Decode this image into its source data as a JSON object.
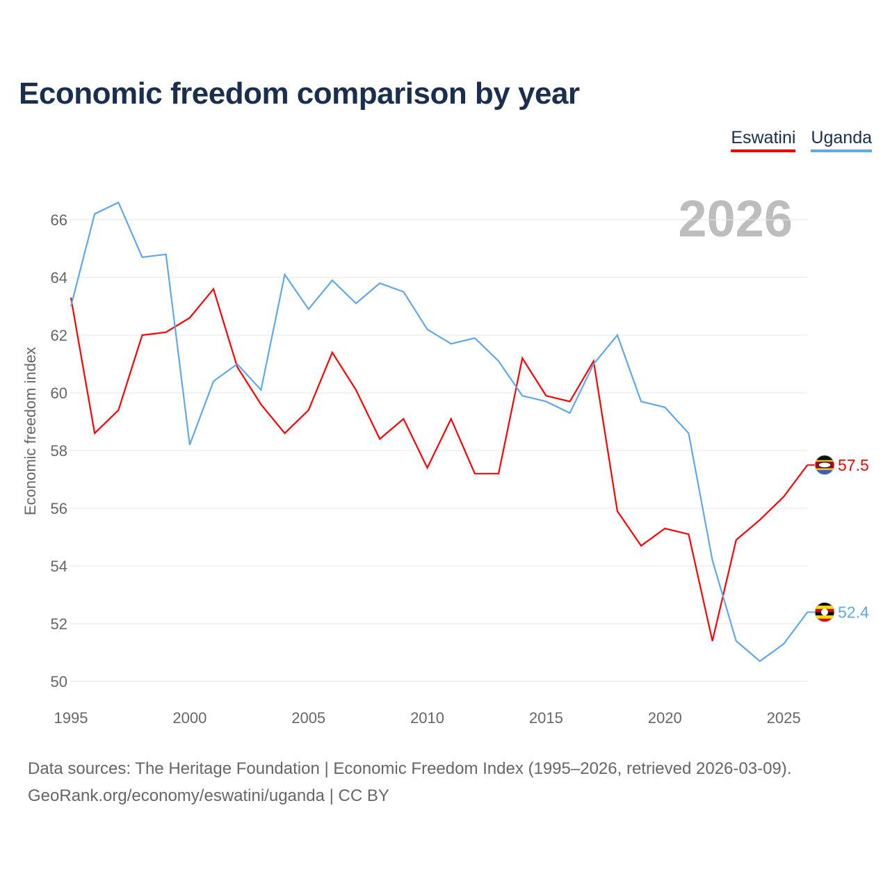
{
  "chart_data": {
    "type": "line",
    "title": "Economic freedom comparison by year",
    "xlabel": "",
    "ylabel": "Economic freedom index",
    "watermark_year": "2026",
    "xlim": [
      1995,
      2026
    ],
    "ylim": [
      50,
      67
    ],
    "x_ticks": [
      1995,
      2000,
      2005,
      2010,
      2015,
      2020,
      2025
    ],
    "y_ticks": [
      50,
      52,
      54,
      56,
      58,
      60,
      62,
      64,
      66
    ],
    "grid": true,
    "legend_position": "top-right",
    "x": [
      1995,
      1996,
      1997,
      1998,
      1999,
      2000,
      2001,
      2002,
      2003,
      2004,
      2005,
      2006,
      2007,
      2008,
      2009,
      2010,
      2011,
      2012,
      2013,
      2014,
      2015,
      2016,
      2017,
      2018,
      2019,
      2020,
      2021,
      2022,
      2023,
      2024,
      2025,
      2026
    ],
    "series": [
      {
        "name": "Eswatini",
        "color": "#ff0000",
        "end_label": "57.5",
        "values": [
          63.3,
          58.6,
          59.4,
          62.0,
          62.1,
          62.6,
          63.6,
          60.9,
          59.6,
          58.6,
          59.4,
          61.4,
          60.1,
          58.4,
          59.1,
          57.4,
          59.1,
          57.2,
          57.2,
          61.2,
          59.9,
          59.7,
          61.1,
          55.9,
          54.7,
          55.3,
          55.1,
          51.4,
          54.9,
          55.6,
          56.4,
          57.5
        ]
      },
      {
        "name": "Uganda",
        "color": "#5fa8ea",
        "end_label": "52.4",
        "values": [
          63.0,
          66.2,
          66.6,
          64.7,
          64.8,
          58.2,
          60.4,
          61.0,
          60.1,
          64.1,
          62.9,
          63.9,
          63.1,
          63.8,
          63.5,
          62.2,
          61.7,
          61.9,
          61.1,
          59.9,
          59.7,
          59.3,
          61.0,
          62.0,
          59.7,
          59.5,
          58.6,
          54.2,
          51.4,
          50.7,
          51.3,
          52.4
        ]
      }
    ]
  },
  "footer": {
    "line1": "Data sources: The Heritage Foundation | Economic Freedom Index (1995–2026, retrieved 2026-03-09).",
    "line2": "GeoRank.org/economy/eswatini/uganda | CC BY"
  }
}
